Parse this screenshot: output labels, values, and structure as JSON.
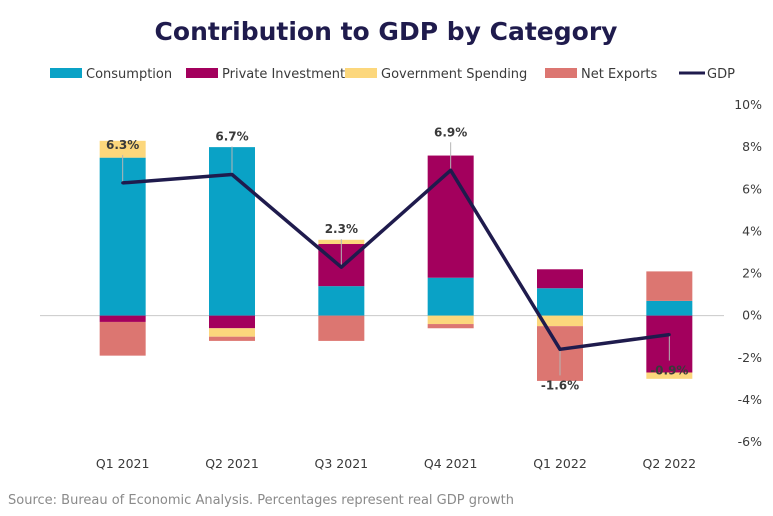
{
  "chart_data": {
    "type": "bar",
    "title": "Contribution to GDP by Category",
    "source": "Source: Bureau of Economic Analysis. Percentages represent real GDP growth",
    "categories": [
      "Q1 2021",
      "Q2 2021",
      "Q3 2021",
      "Q4 2021",
      "Q1 2022",
      "Q2 2022"
    ],
    "series": [
      {
        "name": "Consumption",
        "color": "#0aa2c6",
        "values": [
          7.5,
          8.0,
          1.4,
          1.8,
          1.3,
          0.7
        ]
      },
      {
        "name": "Private Investment",
        "color": "#a3005d",
        "values": [
          -0.3,
          -0.6,
          2.0,
          5.8,
          0.9,
          -2.7
        ]
      },
      {
        "name": "Government Spending",
        "color": "#fcd77c",
        "values": [
          0.8,
          -0.4,
          0.2,
          -0.4,
          -0.5,
          -0.3
        ]
      },
      {
        "name": "Net Exports",
        "color": "#dc7671",
        "values": [
          -1.6,
          -0.2,
          -1.2,
          -0.2,
          -2.6,
          1.4
        ]
      }
    ],
    "line": {
      "name": "GDP",
      "color": "#1f1b4d",
      "values": [
        6.3,
        6.7,
        2.3,
        6.9,
        -1.6,
        -0.9
      ]
    },
    "data_labels": [
      "6.3%",
      "6.7%",
      "2.3%",
      "6.9%",
      "-1.6%",
      "-0.9%"
    ],
    "y_ticks": [
      "10%",
      "8%",
      "6%",
      "4%",
      "2%",
      "0%",
      "-2%",
      "-4%",
      "-6%"
    ],
    "ylim": [
      -6,
      10
    ],
    "y_axis_side": "right",
    "grid": false,
    "legend_position": "top"
  }
}
